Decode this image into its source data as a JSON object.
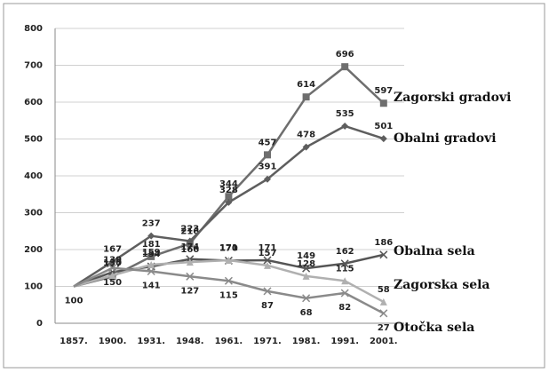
{
  "chart_data": {
    "type": "line",
    "categories": [
      "1857.",
      "1900.",
      "1931.",
      "1948.",
      "1961.",
      "1971.",
      "1981.",
      "1991.",
      "2001."
    ],
    "ylim": [
      0,
      800
    ],
    "yticks": [
      0,
      100,
      200,
      300,
      400,
      500,
      600,
      700,
      800
    ],
    "grid": true,
    "series": [
      {
        "name": "Zagorski gradovi",
        "color": "#6e6e6e",
        "marker": "square",
        "values": [
          100,
          127,
          181,
          216,
          344,
          457,
          614,
          696,
          597
        ]
      },
      {
        "name": "Obalni gradovi",
        "color": "#5e5e5e",
        "marker": "diamond",
        "values": [
          100,
          167,
          237,
          223,
          328,
          391,
          478,
          535,
          501
        ]
      },
      {
        "name": "Obalna sela",
        "color": "#555555",
        "marker": "x",
        "values": [
          100,
          139,
          154,
          174,
          170,
          171,
          149,
          162,
          186
        ]
      },
      {
        "name": "Zagorska sela",
        "color": "#b0b0b0",
        "marker": "triangle",
        "values": [
          100,
          130,
          159,
          166,
          171,
          157,
          128,
          115,
          58
        ]
      },
      {
        "name": "Otočka sela",
        "color": "#8a8a8a",
        "marker": "x",
        "values": [
          100,
          150,
          141,
          127,
          115,
          87,
          68,
          82,
          27
        ]
      }
    ]
  }
}
